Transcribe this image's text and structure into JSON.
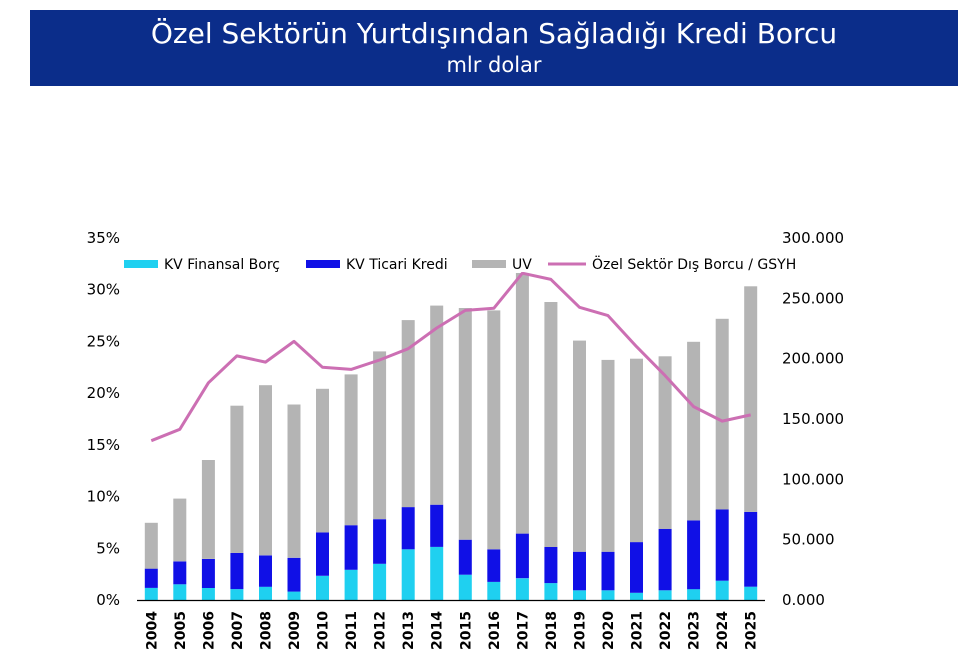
{
  "header": {
    "title": "Özel Sektörün Yurtdışından Sağladığı Kredi Borcu",
    "subtitle": "mlr dolar"
  },
  "colors": {
    "banner": "#0b2d8a",
    "kv_finansal": "#1fd0f0",
    "kv_ticari": "#1010e6",
    "uv": "#b4b4b4",
    "ratio_line": "#cc6fb3"
  },
  "chart_data": {
    "type": "bar",
    "stacked": true,
    "categories": [
      "2004",
      "2005",
      "2006",
      "2007",
      "2008",
      "2009",
      "2010",
      "2011",
      "2012",
      "2013",
      "2014",
      "2015",
      "2016",
      "2017",
      "2018",
      "2019",
      "2020",
      "2021",
      "2022",
      "2023",
      "2024",
      "2025"
    ],
    "series": [
      {
        "name": "KV Finansal Borç",
        "axis": "right",
        "color": "#1fd0f0",
        "values": [
          10000,
          13000,
          10000,
          9000,
          11000,
          7000,
          20000,
          25000,
          30000,
          42000,
          44000,
          21000,
          15000,
          18000,
          14000,
          8000,
          8000,
          6000,
          8000,
          9000,
          16000,
          11000
        ]
      },
      {
        "name": "KV Ticari Kredi",
        "axis": "right",
        "color": "#1010e6",
        "values": [
          16000,
          19000,
          24000,
          30000,
          26000,
          28000,
          36000,
          37000,
          37000,
          35000,
          35000,
          29000,
          27000,
          37000,
          30000,
          32000,
          32000,
          42000,
          51000,
          57000,
          59000,
          62000
        ]
      },
      {
        "name": "UV",
        "axis": "right",
        "color": "#b4b4b4",
        "values": [
          38000,
          52000,
          82000,
          122000,
          141000,
          127000,
          119000,
          125000,
          139000,
          155000,
          165000,
          192000,
          198000,
          216000,
          203000,
          175000,
          159000,
          152000,
          143000,
          148000,
          158000,
          187000
        ]
      },
      {
        "name": "Özel Sektör Dış Borcu / GSYH",
        "type": "line",
        "axis": "left",
        "color": "#cc6fb3",
        "values": [
          15.4,
          16.5,
          21.0,
          23.6,
          23.0,
          25.0,
          22.5,
          22.3,
          23.2,
          24.3,
          26.3,
          28.0,
          28.2,
          31.6,
          31.0,
          28.3,
          27.5,
          24.5,
          21.7,
          18.7,
          17.3,
          17.9
        ]
      }
    ],
    "y_left": {
      "ticks": [
        "0%",
        "5%",
        "10%",
        "15%",
        "20%",
        "25%",
        "30%",
        "35%"
      ],
      "min": 0,
      "max": 35
    },
    "y_right": {
      "ticks": [
        "0.000",
        "50.000",
        "100.000",
        "150.000",
        "200.000",
        "250.000",
        "300.000"
      ],
      "min": 0,
      "max": 300000
    },
    "legend_position": "top",
    "grid": false
  }
}
